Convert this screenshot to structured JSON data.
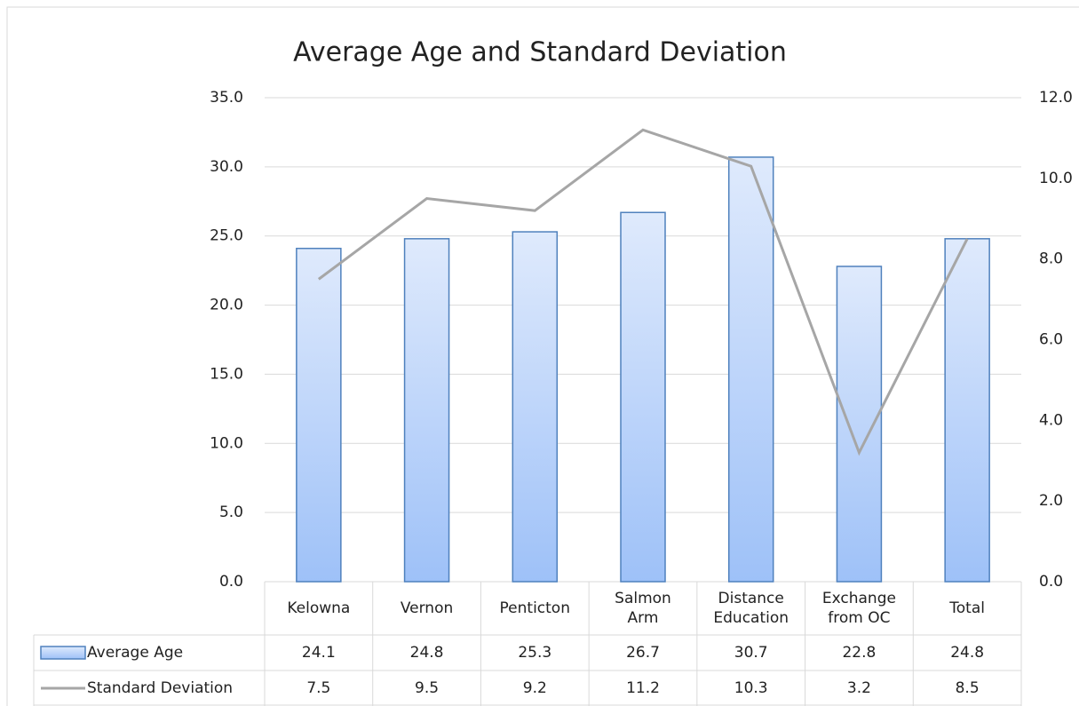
{
  "chart_data": {
    "type": "bar",
    "title": "Average Age and Standard Deviation",
    "categories": [
      "Kelowna",
      "Vernon",
      "Penticton",
      "Salmon Arm",
      "Distance Education",
      "Exchange from OC",
      "Total"
    ],
    "series": [
      {
        "name": "Average Age",
        "type": "bar",
        "color": "#4f81bd",
        "values": [
          24.1,
          24.8,
          25.3,
          26.7,
          30.7,
          22.8,
          24.8
        ]
      },
      {
        "name": "Standard Deviation",
        "type": "line",
        "axis": "y2",
        "color": "#a6a6a6",
        "values": [
          7.5,
          9.5,
          9.2,
          11.2,
          10.3,
          3.2,
          8.5
        ]
      }
    ],
    "ylim": [
      0,
      35
    ],
    "yticks": [
      {
        "value": 0,
        "label": "0.0"
      },
      {
        "value": 5,
        "label": "5.0"
      },
      {
        "value": 10,
        "label": "10.0"
      },
      {
        "value": 15,
        "label": "15.0"
      },
      {
        "value": 20,
        "label": "20.0"
      },
      {
        "value": 25,
        "label": "25.0"
      },
      {
        "value": 30,
        "label": "30.0"
      },
      {
        "value": 35,
        "label": "35.0"
      }
    ],
    "y2lim": [
      0,
      12
    ],
    "y2ticks": [
      {
        "value": 0,
        "label": "0.0"
      },
      {
        "value": 2,
        "label": "2.0"
      },
      {
        "value": 4,
        "label": "4.0"
      },
      {
        "value": 6,
        "label": "6.0"
      },
      {
        "value": 8,
        "label": "8.0"
      },
      {
        "value": 10,
        "label": "10.0"
      },
      {
        "value": 12,
        "label": "12.0"
      }
    ],
    "grid": true,
    "data_table": true
  }
}
